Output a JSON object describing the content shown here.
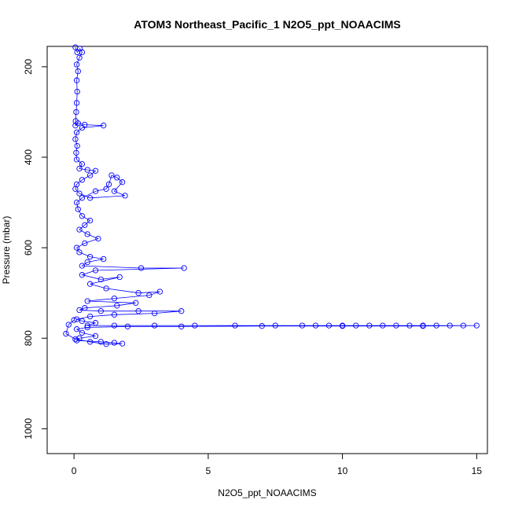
{
  "chart_data": {
    "type": "scatter",
    "title": "ATOM3 Northeast_Pacific_1 N2O5_ppt_NOAACIMS",
    "xlabel": "N2O5_ppt_NOAACIMS",
    "ylabel": "Pressure (mbar)",
    "xlim": [
      -1.0,
      15.4
    ],
    "ylim": [
      1055,
      155
    ],
    "y_inverted": true,
    "xticks": [
      0,
      5,
      10,
      15
    ],
    "xtick_labels": [
      "0",
      "5",
      "10",
      "15"
    ],
    "yticks": [
      200,
      400,
      600,
      800,
      1000
    ],
    "ytick_labels": [
      "200",
      "400",
      "600",
      "800",
      "1000"
    ],
    "grid": false,
    "legend": "none",
    "colors": {
      "series": "#0000ff",
      "frame": "#000000"
    },
    "marker": "open-circle",
    "connected": true,
    "series": [
      {
        "points": [
          [
            0.05,
            157
          ],
          [
            0.12,
            168
          ],
          [
            0.22,
            160
          ],
          [
            0.3,
            168
          ],
          [
            0.2,
            180
          ],
          [
            0.1,
            195
          ],
          [
            0.15,
            210
          ],
          [
            0.1,
            230
          ],
          [
            0.12,
            255
          ],
          [
            0.1,
            280
          ],
          [
            0.08,
            300
          ],
          [
            0.06,
            320
          ],
          [
            0.05,
            330
          ],
          [
            0.15,
            325
          ],
          [
            0.4,
            328
          ],
          [
            1.1,
            330
          ],
          [
            0.3,
            335
          ],
          [
            0.1,
            345
          ],
          [
            0.05,
            360
          ],
          [
            0.12,
            375
          ],
          [
            0.08,
            390
          ],
          [
            0.1,
            405
          ],
          [
            0.3,
            415
          ],
          [
            0.2,
            425
          ],
          [
            0.5,
            428
          ],
          [
            0.8,
            430
          ],
          [
            0.6,
            440
          ],
          [
            0.3,
            450
          ],
          [
            0.1,
            460
          ],
          [
            0.05,
            470
          ],
          [
            0.2,
            480
          ],
          [
            0.6,
            490
          ],
          [
            1.9,
            485
          ],
          [
            1.5,
            475
          ],
          [
            1.8,
            455
          ],
          [
            1.6,
            445
          ],
          [
            1.4,
            440
          ],
          [
            1.3,
            460
          ],
          [
            1.2,
            470
          ],
          [
            0.8,
            475
          ],
          [
            0.3,
            490
          ],
          [
            0.1,
            500
          ],
          [
            0.15,
            515
          ],
          [
            0.3,
            530
          ],
          [
            0.6,
            540
          ],
          [
            0.4,
            550
          ],
          [
            0.2,
            560
          ],
          [
            0.5,
            570
          ],
          [
            0.9,
            580
          ],
          [
            0.4,
            590
          ],
          [
            0.1,
            600
          ],
          [
            0.2,
            610
          ],
          [
            0.6,
            620
          ],
          [
            1.1,
            625
          ],
          [
            0.5,
            632
          ],
          [
            0.3,
            640
          ],
          [
            2.5,
            645
          ],
          [
            4.1,
            645
          ],
          [
            0.8,
            650
          ],
          [
            0.3,
            660
          ],
          [
            1.0,
            670
          ],
          [
            1.7,
            665
          ],
          [
            0.6,
            680
          ],
          [
            1.2,
            690
          ],
          [
            2.4,
            700
          ],
          [
            3.2,
            697
          ],
          [
            2.8,
            705
          ],
          [
            1.5,
            712
          ],
          [
            0.5,
            718
          ],
          [
            2.3,
            722
          ],
          [
            1.6,
            728
          ],
          [
            0.4,
            733
          ],
          [
            0.2,
            738
          ],
          [
            1.0,
            740
          ],
          [
            2.4,
            740
          ],
          [
            4.0,
            740
          ],
          [
            3.0,
            745
          ],
          [
            1.5,
            748
          ],
          [
            0.6,
            752
          ],
          [
            0.1,
            758
          ],
          [
            0.3,
            762
          ],
          [
            0.8,
            766
          ],
          [
            0.5,
            772
          ],
          [
            1.5,
            772
          ],
          [
            3.0,
            772
          ],
          [
            4.5,
            772
          ],
          [
            6.0,
            772
          ],
          [
            7.5,
            772
          ],
          [
            8.5,
            772
          ],
          [
            9.0,
            772
          ],
          [
            9.5,
            772
          ],
          [
            10.0,
            772
          ],
          [
            10.5,
            772
          ],
          [
            11.0,
            772
          ],
          [
            11.5,
            772
          ],
          [
            12.0,
            772
          ],
          [
            12.5,
            772
          ],
          [
            13.0,
            772
          ],
          [
            13.5,
            772
          ],
          [
            14.0,
            772
          ],
          [
            14.5,
            772
          ],
          [
            15.0,
            772
          ],
          [
            13.0,
            773
          ],
          [
            10.0,
            773
          ],
          [
            7.0,
            773
          ],
          [
            4.0,
            774
          ],
          [
            2.0,
            774
          ],
          [
            0.5,
            776
          ],
          [
            0.1,
            780
          ],
          [
            0.3,
            788
          ],
          [
            0.8,
            795
          ],
          [
            0.2,
            800
          ],
          [
            0.1,
            805
          ],
          [
            1.0,
            808
          ],
          [
            1.5,
            810
          ],
          [
            1.8,
            812
          ],
          [
            1.2,
            813
          ],
          [
            0.6,
            808
          ],
          [
            0.05,
            802
          ],
          [
            -0.3,
            790
          ],
          [
            -0.2,
            770
          ],
          [
            0.0,
            760
          ]
        ]
      }
    ]
  }
}
